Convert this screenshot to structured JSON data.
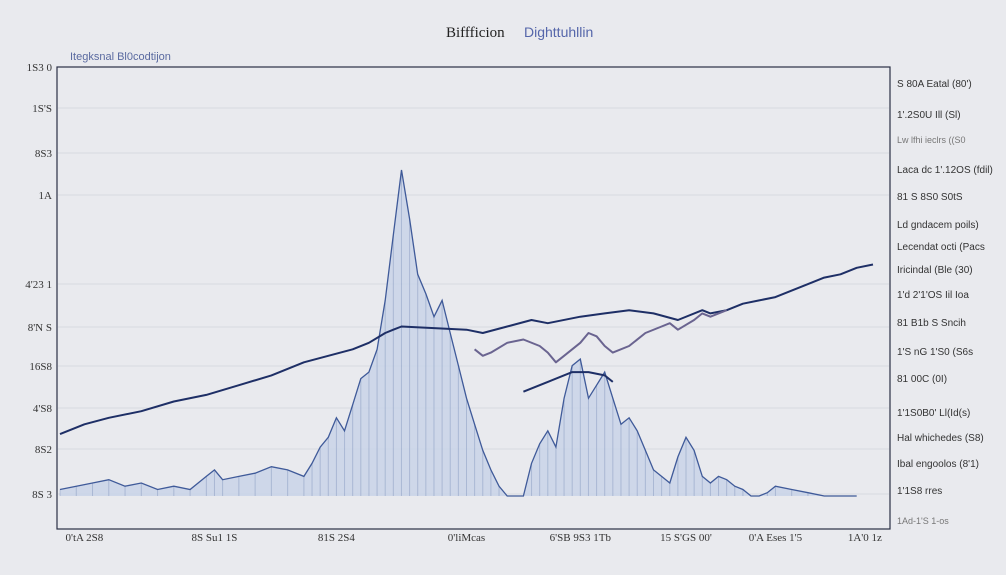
{
  "title_part1": "Biffficion",
  "title_part2": "Dighttuhllin",
  "subtitle": "Itegksnal Bl0codtijon",
  "colors": {
    "background": "#e9eaee",
    "navy": "#1e2f66",
    "blue": "#3f5a99",
    "fill_light": "#c9d3e8",
    "purple": "#6a6490",
    "grid": "#d6d9e0"
  },
  "chart_data": {
    "type": "area",
    "title": "Biffficion Dighttuhllin",
    "xlabel": "",
    "ylabel": "",
    "x_range": [
      0,
      100
    ],
    "y_range": [
      0,
      100
    ],
    "grid": true,
    "y_ticks": [
      "1S3 0",
      "1S'S",
      "8S3",
      "1A",
      "4'23 1",
      "8'N S",
      "16S8",
      "4'S8",
      "8S2",
      "8S 3"
    ],
    "y_tick_values": [
      100,
      90,
      80,
      70,
      50,
      40,
      30,
      20,
      10,
      0
    ],
    "x_ticks": [
      "0'tA 2S8",
      "8S Su1 1S",
      "81S 2S4",
      "0'liMcas",
      "6'SB 9S3 1Tb",
      "15 S'GS 00'",
      "0'A Eses 1'5",
      "1A'0 1z"
    ],
    "x_tick_positions": [
      3,
      19,
      34,
      50,
      64,
      77,
      88,
      99
    ],
    "series": [
      {
        "style": "line",
        "color": "#1e2f66",
        "x": [
          0,
          3,
          6,
          10,
          14,
          18,
          22,
          26,
          30,
          33,
          36,
          38,
          40,
          41,
          42,
          50,
          52,
          55,
          58,
          60,
          64,
          67,
          70,
          73,
          76,
          79,
          80,
          82,
          84,
          86,
          88,
          90,
          92,
          94,
          96,
          98,
          100
        ],
        "y": [
          19,
          22,
          24,
          26,
          29,
          31,
          34,
          37,
          41,
          43,
          45,
          47,
          50,
          51,
          52,
          51,
          50,
          52,
          54,
          53,
          55,
          56,
          57,
          56,
          54,
          57,
          56,
          57,
          59,
          60,
          61,
          63,
          65,
          67,
          68,
          70,
          71
        ]
      },
      {
        "style": "line",
        "color": "#6a6490",
        "x": [
          51,
          52,
          53,
          55,
          57,
          59,
          60,
          61,
          62,
          64,
          65,
          66,
          67,
          68,
          70,
          72,
          74,
          75,
          76,
          78,
          79,
          80,
          82
        ],
        "y": [
          45,
          43,
          44,
          47,
          48,
          46,
          44,
          41,
          43,
          47,
          50,
          49,
          46,
          44,
          46,
          50,
          52,
          53,
          51,
          54,
          56,
          55,
          57
        ]
      },
      {
        "style": "line",
        "color": "#1e2f66",
        "x": [
          57,
          60,
          63,
          65,
          67,
          68
        ],
        "y": [
          32,
          35,
          38,
          38,
          37,
          35
        ]
      },
      {
        "style": "area",
        "color": "#3f5a99",
        "fill": "#c9d3e8",
        "x": [
          0,
          2,
          4,
          6,
          8,
          10,
          12,
          14,
          16,
          18,
          19,
          20,
          22,
          24,
          26,
          28,
          30,
          31,
          32,
          33,
          34,
          35,
          36,
          37,
          38,
          39,
          40,
          41,
          42,
          43,
          44,
          45,
          46,
          47,
          48,
          49,
          50,
          51,
          52,
          53,
          54,
          55,
          56,
          57,
          58,
          59,
          60,
          61,
          62,
          63,
          64,
          65,
          66,
          67,
          68,
          69,
          70,
          71,
          72,
          73,
          74,
          75,
          76,
          77,
          78,
          79,
          80,
          81,
          82,
          83,
          84,
          85,
          86,
          87,
          88,
          90,
          92,
          94,
          96,
          98
        ],
        "y": [
          2,
          3,
          4,
          5,
          3,
          4,
          2,
          3,
          2,
          6,
          8,
          5,
          6,
          7,
          9,
          8,
          6,
          10,
          15,
          18,
          24,
          20,
          28,
          36,
          38,
          45,
          60,
          80,
          100,
          85,
          68,
          62,
          55,
          60,
          50,
          40,
          30,
          22,
          14,
          8,
          3,
          0,
          0,
          0,
          10,
          16,
          20,
          15,
          30,
          40,
          42,
          30,
          34,
          38,
          30,
          22,
          24,
          20,
          14,
          8,
          6,
          4,
          12,
          18,
          14,
          6,
          4,
          6,
          5,
          3,
          2,
          0,
          0,
          1,
          3,
          2,
          1,
          0,
          0,
          0
        ]
      }
    ],
    "right_labels": [
      "S 80A Eatal (80')",
      "1'.2S0U Ill (Sl)",
      "Lw lfhi ieclrs ((S0",
      "Laca dc 1'.12OS (fdil)",
      "81 S 8S0 S0tS",
      "Ld gndacem poils)",
      "Lecendat octi (Pacs",
      "Iricindal (Ble (30)",
      "1'd 2'1'OS Iil Ioa",
      "81 B1b S Sncih",
      "1'S nG 1'S0 (S6s",
      "81 00C (0I)",
      "1'1S0B0' Ll(Id(s)",
      "Hal whichedes (S8)",
      "Ibal engoolos (8'1)",
      "1'1S8 rres",
      "1Ad-1'S 1-os"
    ]
  }
}
